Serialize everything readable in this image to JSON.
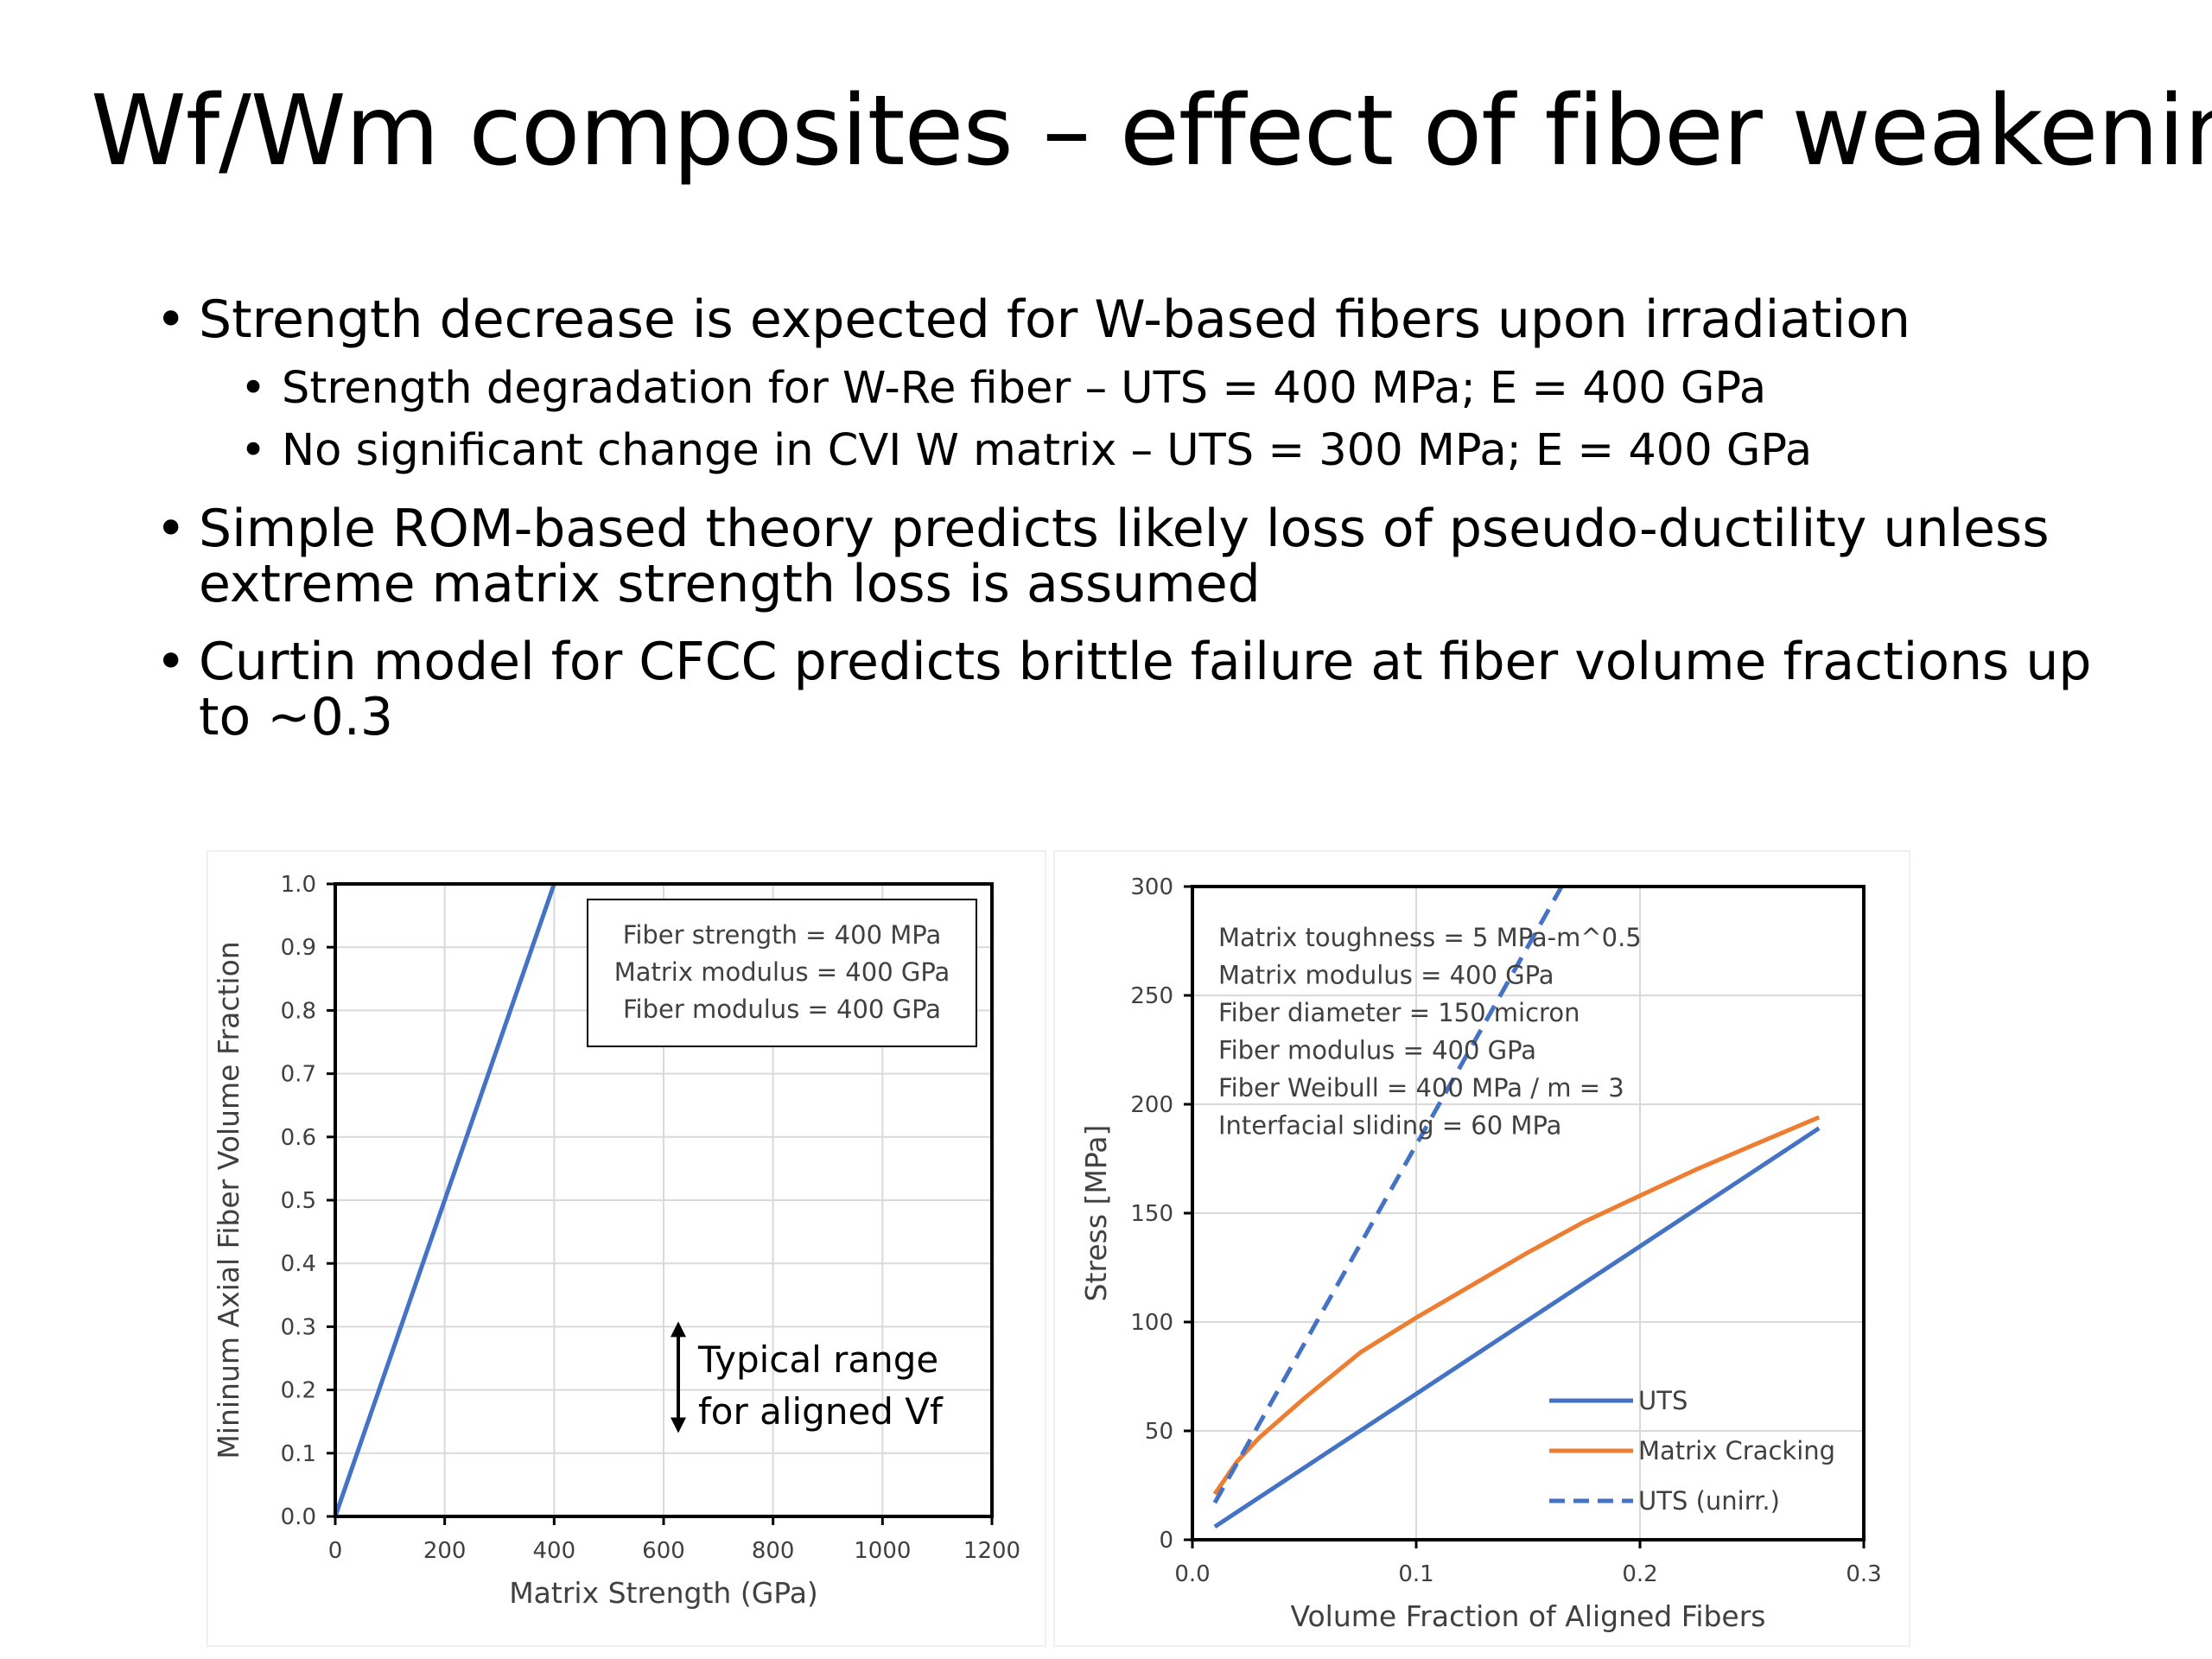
{
  "slide": {
    "title": "Wf/Wm composites – effect of fiber weakening",
    "bullets": [
      {
        "text": "Strength decrease is expected for W-based fibers upon irradiation",
        "sub": [
          "Strength degradation for W-Re fiber – UTS = 400 MPa; E = 400 GPa",
          "No significant change in CVI W matrix – UTS = 300 MPa; E = 400 GPa"
        ]
      },
      {
        "text": "Simple ROM-based theory predicts likely loss of pseudo-ductility unless extreme matrix strength loss is assumed",
        "sub": []
      },
      {
        "text": "Curtin model for CFCC predicts brittle failure at fiber volume fractions up to ~0.3",
        "sub": []
      }
    ]
  },
  "colors": {
    "blue": "#4472C4",
    "orange": "#ED7D31",
    "grid": "#d9d9d9",
    "axis": "#000000",
    "text": "#404040"
  },
  "chart_data": [
    {
      "type": "line",
      "xlabel": "Matrix Strength (GPa)",
      "ylabel": "Mininum Axial Fiber Volume Fraction",
      "xlim": [
        0,
        1200
      ],
      "ylim": [
        0,
        1.0
      ],
      "xticks": [
        0,
        200,
        400,
        600,
        800,
        1000,
        1200
      ],
      "xtick_labels": [
        "0",
        "200",
        "400",
        "600",
        "800",
        "1000",
        "1200"
      ],
      "yticks": [
        0,
        0.1,
        0.2,
        0.3,
        0.4,
        0.5,
        0.6,
        0.7,
        0.8,
        0.9,
        1.0
      ],
      "ytick_labels": [
        "0.0",
        "0.1",
        "0.2",
        "0.3",
        "0.4",
        "0.5",
        "0.6",
        "0.7",
        "0.8",
        "0.9",
        "1.0"
      ],
      "grid": true,
      "series": [
        {
          "color": "#4472C4",
          "dash": false,
          "x": [
            0,
            400
          ],
          "y": [
            0,
            1.0
          ]
        }
      ],
      "text_box": {
        "placement": "top-right",
        "lines": [
          "Fiber strength = 400 MPa",
          "Matrix modulus = 400 GPa",
          "Fiber modulus = 400 GPa"
        ]
      },
      "annotation": {
        "lines": [
          "Typical range",
          "for aligned Vf"
        ],
        "range": [
          0.14,
          0.3
        ]
      }
    },
    {
      "type": "line",
      "xlabel": "Volume Fraction of Aligned Fibers",
      "ylabel": "Stress [MPa]",
      "xlim": [
        0,
        0.3
      ],
      "ylim": [
        0,
        300
      ],
      "xticks": [
        0,
        0.1,
        0.2,
        0.3
      ],
      "xtick_labels": [
        "0.0",
        "0.1",
        "0.2",
        "0.3"
      ],
      "yticks": [
        0,
        50,
        100,
        150,
        200,
        250,
        300
      ],
      "ytick_labels": [
        "0",
        "50",
        "100",
        "150",
        "200",
        "250",
        "300"
      ],
      "grid": true,
      "legend": "bottom-right",
      "series": [
        {
          "name": "UTS",
          "color": "#4472C4",
          "dash": false,
          "x": [
            0.01,
            0.28
          ],
          "y": [
            6,
            189
          ]
        },
        {
          "name": "Matrix Cracking",
          "color": "#ED7D31",
          "dash": false,
          "x": [
            0.01,
            0.02,
            0.03,
            0.05,
            0.075,
            0.1,
            0.125,
            0.15,
            0.175,
            0.2,
            0.225,
            0.25,
            0.28
          ],
          "y": [
            21,
            36,
            47,
            65,
            86,
            102,
            117,
            132,
            146,
            158,
            170,
            181,
            194
          ]
        },
        {
          "name": "UTS (unirr.)",
          "color": "#4472C4",
          "dash": true,
          "x": [
            0.01,
            0.165
          ],
          "y": [
            17,
            300
          ]
        }
      ],
      "text_box": {
        "placement": "top-left",
        "lines": [
          "Matrix toughness = 5 MPa-m^0.5",
          "Matrix modulus = 400 GPa",
          "Fiber diameter  = 150 micron",
          "Fiber modulus = 400 GPa",
          "Fiber Weibull = 400 MPa / m  = 3",
          "Interfacial sliding = 60 MPa"
        ]
      }
    }
  ]
}
